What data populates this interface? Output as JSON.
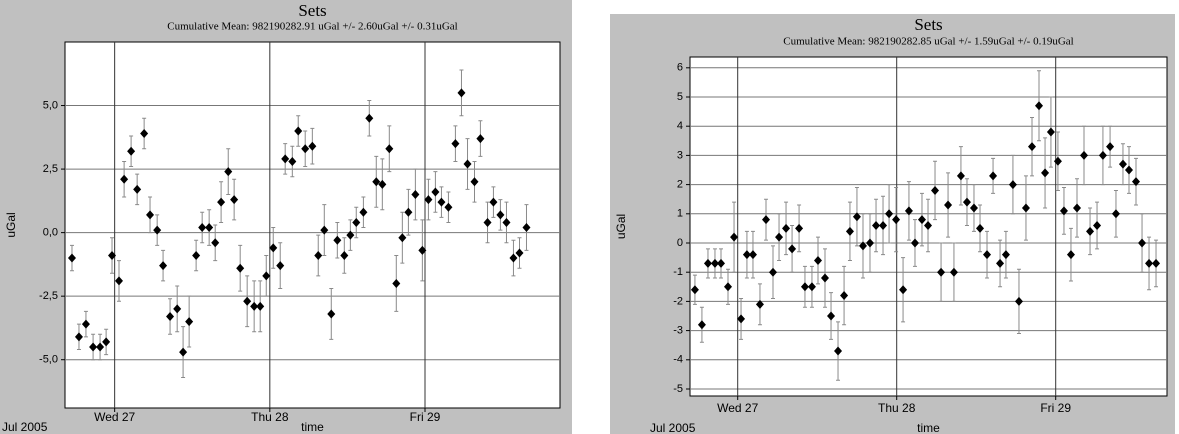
{
  "chart_data": [
    {
      "type": "scatter",
      "title": "Sets",
      "subtitle": "Cumulative Mean:  982190282.91 uGal  +/- 2.60uGal +/-  0.31uGal",
      "x_label": "time",
      "y_label": "uGal",
      "date_label": "Jul 2005",
      "color": "#000000",
      "error_color": "#8a8a8a",
      "grid": true,
      "xlim": [
        26.68,
        29.87
      ],
      "ylim": [
        -6.9,
        7.5
      ],
      "xticks": [
        {
          "value": 27,
          "label": "Wed 27"
        },
        {
          "value": 28,
          "label": "Thu 28"
        },
        {
          "value": 29,
          "label": "Fri 29"
        }
      ],
      "yticks": [
        {
          "value": 5,
          "label": "5,0"
        },
        {
          "value": 2.5,
          "label": "2,5"
        },
        {
          "value": 0,
          "label": "0,0"
        },
        {
          "value": -2.5,
          "label": "-2,5"
        },
        {
          "value": -5,
          "label": "-5,0"
        }
      ],
      "x": [
        26.725,
        26.77,
        26.815,
        26.861,
        26.906,
        26.945,
        26.983,
        27.028,
        27.061,
        27.106,
        27.145,
        27.19,
        27.228,
        27.274,
        27.312,
        27.357,
        27.403,
        27.441,
        27.48,
        27.525,
        27.564,
        27.609,
        27.648,
        27.686,
        27.732,
        27.77,
        27.809,
        27.854,
        27.899,
        27.938,
        27.977,
        28.022,
        28.067,
        28.099,
        28.145,
        28.183,
        28.228,
        28.274,
        28.312,
        28.351,
        28.396,
        28.435,
        28.48,
        28.519,
        28.557,
        28.603,
        28.641,
        28.686,
        28.725,
        28.77,
        28.815,
        28.854,
        28.893,
        28.938,
        28.983,
        29.022,
        29.067,
        29.106,
        29.151,
        29.196,
        29.235,
        29.274,
        29.319,
        29.357,
        29.403,
        29.441,
        29.486,
        29.525,
        29.57,
        29.609,
        29.654
      ],
      "values": [
        -1.0,
        -4.1,
        -3.6,
        -4.5,
        -4.5,
        -4.3,
        -0.9,
        -1.9,
        2.1,
        3.2,
        1.7,
        3.9,
        0.7,
        0.1,
        -1.3,
        -3.3,
        -3.0,
        -4.7,
        -3.5,
        -0.9,
        0.2,
        0.2,
        -0.4,
        1.2,
        2.4,
        1.3,
        -1.4,
        -2.7,
        -2.9,
        -2.9,
        -1.7,
        -0.6,
        -1.3,
        2.9,
        2.8,
        4.0,
        3.3,
        3.4,
        -0.9,
        0.1,
        -3.2,
        -0.3,
        -0.9,
        -0.1,
        0.4,
        0.8,
        4.5,
        2.0,
        1.9,
        3.3,
        -2.0,
        -0.2,
        0.8,
        1.5,
        -0.7,
        1.3,
        1.6,
        1.2,
        1.0,
        3.5,
        5.5,
        2.7,
        2.0,
        3.7,
        0.4,
        1.2,
        0.7,
        0.4,
        -1.0,
        -0.8,
        0.2
      ],
      "errors": [
        0.5,
        0.5,
        0.5,
        0.5,
        0.5,
        0.5,
        0.7,
        0.8,
        0.7,
        0.6,
        0.6,
        0.6,
        0.7,
        0.6,
        0.6,
        0.7,
        0.9,
        1.0,
        1.0,
        0.6,
        0.6,
        0.7,
        0.7,
        0.8,
        0.9,
        0.8,
        0.9,
        1.0,
        1.0,
        1.0,
        0.8,
        0.8,
        0.9,
        0.6,
        0.6,
        0.6,
        0.7,
        0.7,
        0.8,
        1.0,
        1.0,
        0.7,
        0.7,
        0.6,
        0.6,
        0.6,
        0.7,
        1.0,
        1.0,
        0.9,
        1.1,
        1.0,
        0.9,
        1.0,
        1.2,
        0.8,
        0.8,
        0.6,
        0.6,
        0.7,
        0.9,
        1.0,
        0.8,
        0.7,
        0.8,
        0.6,
        0.6,
        0.8,
        0.7,
        0.6,
        0.9
      ]
    },
    {
      "type": "scatter",
      "title": "Sets",
      "subtitle": "Cumulative Mean:  982190282.85 uGal   +/- 1.59uGal +/-  0.19uGal",
      "x_label": "time",
      "y_label": "uGal",
      "date_label": "Jul 2005",
      "color": "#000000",
      "error_color": "#8a8a8a",
      "grid": true,
      "xlim": [
        26.7,
        29.7
      ],
      "ylim": [
        -5.24,
        6.37
      ],
      "xticks": [
        {
          "value": 27,
          "label": "Wed 27"
        },
        {
          "value": 28,
          "label": "Thu 28"
        },
        {
          "value": 29,
          "label": "Fri 29"
        }
      ],
      "yticks": [
        6,
        5,
        4,
        3,
        2,
        1,
        0,
        -1,
        -2,
        -3,
        -4,
        -5
      ],
      "x": [
        26.731,
        26.775,
        26.813,
        26.857,
        26.895,
        26.939,
        26.977,
        27.021,
        27.058,
        27.096,
        27.14,
        27.178,
        27.222,
        27.26,
        27.304,
        27.342,
        27.386,
        27.423,
        27.467,
        27.505,
        27.549,
        27.587,
        27.631,
        27.669,
        27.706,
        27.75,
        27.788,
        27.832,
        27.87,
        27.914,
        27.952,
        27.996,
        28.04,
        28.077,
        28.115,
        28.159,
        28.197,
        28.241,
        28.279,
        28.323,
        28.36,
        28.404,
        28.442,
        28.486,
        28.524,
        28.568,
        28.606,
        28.65,
        28.687,
        28.731,
        28.769,
        28.813,
        28.851,
        28.895,
        28.933,
        28.97,
        29.014,
        29.052,
        29.096,
        29.134,
        29.178,
        29.216,
        29.26,
        29.297,
        29.342,
        29.379,
        29.423,
        29.461,
        29.505,
        29.543,
        29.587,
        29.631
      ],
      "values": [
        -1.6,
        -2.8,
        -0.7,
        -0.7,
        -0.7,
        -1.5,
        0.2,
        -2.6,
        -0.4,
        -0.4,
        -2.1,
        0.8,
        -1.0,
        0.2,
        0.5,
        -0.2,
        0.5,
        -1.5,
        -1.5,
        -0.6,
        -1.2,
        -2.5,
        -3.7,
        -1.8,
        0.4,
        0.9,
        -0.1,
        0.0,
        0.6,
        0.6,
        1.0,
        0.8,
        -1.6,
        1.1,
        0.0,
        0.8,
        0.6,
        1.8,
        -1.0,
        1.3,
        -1.0,
        2.3,
        1.4,
        1.2,
        0.5,
        -0.4,
        2.3,
        -0.7,
        -0.4,
        2.0,
        -2.0,
        1.2,
        3.3,
        4.7,
        2.4,
        3.8,
        2.8,
        1.1,
        -0.4,
        1.2,
        3.0,
        0.4,
        0.6,
        3.0,
        3.3,
        1.0,
        2.7,
        2.5,
        2.1,
        0.0,
        -0.7,
        -0.7
      ],
      "errors": [
        0.5,
        0.6,
        0.5,
        0.5,
        0.5,
        0.6,
        1.2,
        0.7,
        0.8,
        0.8,
        0.7,
        0.7,
        0.9,
        0.8,
        0.9,
        0.8,
        0.8,
        0.7,
        0.7,
        0.8,
        1.0,
        0.8,
        1.0,
        1.0,
        1.0,
        1.0,
        1.1,
        1.0,
        0.9,
        1.0,
        1.0,
        1.1,
        1.1,
        1.0,
        0.8,
        0.9,
        0.9,
        1.0,
        1.0,
        1.1,
        1.0,
        1.0,
        0.8,
        0.8,
        0.8,
        0.8,
        0.6,
        0.8,
        0.8,
        1.0,
        1.1,
        1.1,
        1.0,
        1.2,
        1.2,
        1.2,
        1.0,
        0.8,
        0.9,
        1.0,
        1.0,
        0.8,
        0.8,
        1.0,
        0.7,
        0.8,
        0.7,
        0.8,
        0.8,
        1.0,
        0.9,
        0.8
      ]
    }
  ]
}
